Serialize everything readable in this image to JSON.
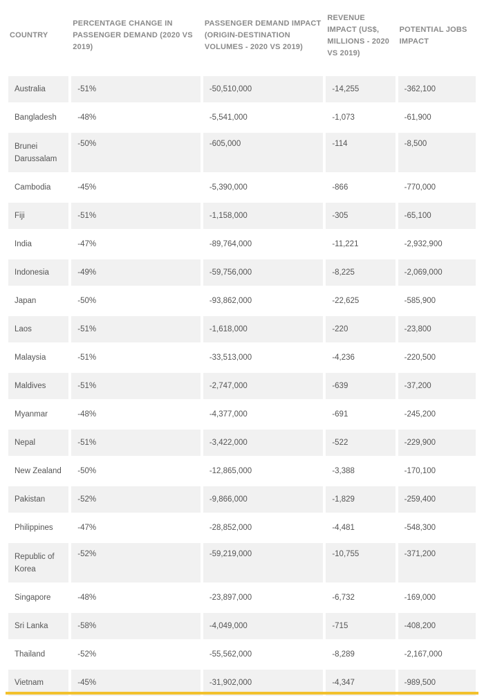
{
  "table": {
    "headers": [
      "COUNTRY",
      "PERCENTAGE CHANGE IN PASSENGER DEMAND (2020 VS 2019)",
      "PASSENGER DEMAND IMPACT (ORIGIN-DESTINATION VOLUMES - 2020 VS 2019)",
      "REVENUE IMPACT (US$, MILLIONS - 2020 VS 2019)",
      "POTENTIAL JOBS IMPACT"
    ],
    "rows": [
      [
        "Australia",
        "-51%",
        "-50,510,000",
        "-14,255",
        "-362,100"
      ],
      [
        "Bangladesh",
        "-48%",
        "-5,541,000",
        "-1,073",
        "-61,900"
      ],
      [
        "Brunei Darussalam",
        "-50%",
        "-605,000",
        "-114",
        "-8,500"
      ],
      [
        "Cambodia",
        "-45%",
        "-5,390,000",
        "-866",
        "-770,000"
      ],
      [
        "Fiji",
        "-51%",
        "-1,158,000",
        "-305",
        "-65,100"
      ],
      [
        "India",
        "-47%",
        "-89,764,000",
        "-11,221",
        "-2,932,900"
      ],
      [
        "Indonesia",
        "-49%",
        "-59,756,000",
        "-8,225",
        "-2,069,000"
      ],
      [
        "Japan",
        "-50%",
        "-93,862,000",
        "-22,625",
        "-585,900"
      ],
      [
        "Laos",
        "-51%",
        "-1,618,000",
        "-220",
        "-23,800"
      ],
      [
        "Malaysia",
        "-51%",
        "-33,513,000",
        "-4,236",
        "-220,500"
      ],
      [
        "Maldives",
        "-51%",
        "-2,747,000",
        "-639",
        "-37,200"
      ],
      [
        "Myanmar",
        "-48%",
        "-4,377,000",
        "-691",
        "-245,200"
      ],
      [
        "Nepal",
        "-51%",
        "-3,422,000",
        "-522",
        "-229,900"
      ],
      [
        "New Zealand",
        "-50%",
        "-12,865,000",
        "-3,388",
        "-170,100"
      ],
      [
        "Pakistan",
        "-52%",
        "-9,866,000",
        "-1,829",
        "-259,400"
      ],
      [
        "Philippines",
        "-47%",
        "-28,852,000",
        "-4,481",
        "-548,300"
      ],
      [
        "Republic of Korea",
        "-52%",
        "-59,219,000",
        "-10,755",
        "-371,200"
      ],
      [
        "Singapore",
        "-48%",
        "-23,897,000",
        "-6,732",
        "-169,000"
      ],
      [
        "Sri Lanka",
        "-58%",
        "-4,049,000",
        "-715",
        "-408,200"
      ],
      [
        "Thailand",
        "-52%",
        "-55,562,000",
        "-8,289",
        "-2,167,000"
      ],
      [
        "Vietnam",
        "-45%",
        "-31,902,000",
        "-4,347",
        "-989,500"
      ]
    ]
  },
  "colors": {
    "accent_rule": "#f2c12e",
    "row_alt": "#f1f1f1"
  }
}
